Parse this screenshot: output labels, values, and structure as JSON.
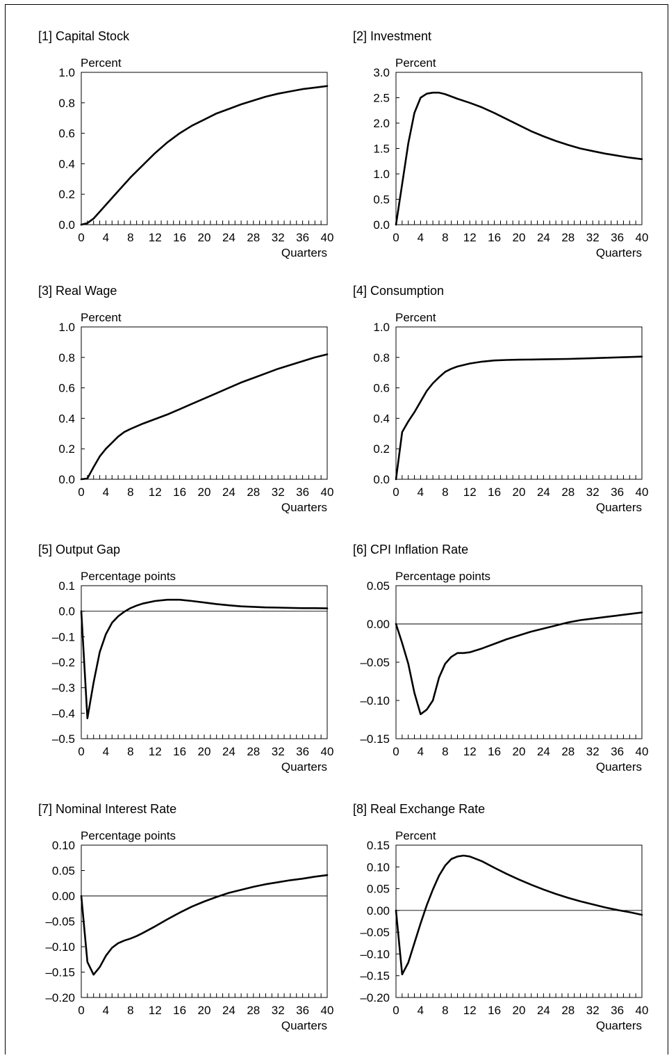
{
  "chart_data": [
    {
      "type": "line",
      "title": "[1] Capital Stock",
      "ylabel": "Percent",
      "xlabel": "Quarters",
      "xlim": [
        0,
        40
      ],
      "ylim": [
        0,
        1.0
      ],
      "xticks": [
        0,
        4,
        8,
        12,
        16,
        20,
        24,
        28,
        32,
        36,
        40
      ],
      "yticks": [
        0.0,
        0.2,
        0.4,
        0.6,
        0.8,
        1.0
      ],
      "ytick_labels": [
        "0.0",
        "0.2",
        "0.4",
        "0.6",
        "0.8",
        "1.0"
      ],
      "zero_line": false,
      "series": [
        {
          "x": [
            0,
            1,
            2,
            4,
            6,
            8,
            10,
            12,
            14,
            16,
            18,
            20,
            22,
            24,
            26,
            28,
            30,
            32,
            34,
            36,
            38,
            40
          ],
          "y": [
            0.0,
            0.01,
            0.04,
            0.13,
            0.22,
            0.31,
            0.39,
            0.47,
            0.54,
            0.6,
            0.65,
            0.69,
            0.73,
            0.76,
            0.79,
            0.815,
            0.84,
            0.86,
            0.875,
            0.89,
            0.9,
            0.91
          ]
        }
      ]
    },
    {
      "type": "line",
      "title": "[2] Investment",
      "ylabel": "Percent",
      "xlabel": "Quarters",
      "xlim": [
        0,
        40
      ],
      "ylim": [
        0,
        3.0
      ],
      "xticks": [
        0,
        4,
        8,
        12,
        16,
        20,
        24,
        28,
        32,
        36,
        40
      ],
      "yticks": [
        0.0,
        0.5,
        1.0,
        1.5,
        2.0,
        2.5,
        3.0
      ],
      "ytick_labels": [
        "0.0",
        "0.5",
        "1.0",
        "1.5",
        "2.0",
        "2.5",
        "3.0"
      ],
      "zero_line": false,
      "series": [
        {
          "x": [
            0,
            1,
            2,
            3,
            4,
            5,
            6,
            7,
            8,
            10,
            12,
            14,
            16,
            18,
            20,
            22,
            24,
            26,
            28,
            30,
            32,
            34,
            36,
            38,
            40
          ],
          "y": [
            0.0,
            0.8,
            1.6,
            2.2,
            2.5,
            2.58,
            2.6,
            2.6,
            2.57,
            2.48,
            2.4,
            2.31,
            2.2,
            2.08,
            1.96,
            1.84,
            1.74,
            1.65,
            1.57,
            1.5,
            1.45,
            1.4,
            1.36,
            1.32,
            1.29
          ]
        }
      ]
    },
    {
      "type": "line",
      "title": "[3] Real Wage",
      "ylabel": "Percent",
      "xlabel": "Quarters",
      "xlim": [
        0,
        40
      ],
      "ylim": [
        0,
        1.0
      ],
      "xticks": [
        0,
        4,
        8,
        12,
        16,
        20,
        24,
        28,
        32,
        36,
        40
      ],
      "yticks": [
        0.0,
        0.2,
        0.4,
        0.6,
        0.8,
        1.0
      ],
      "ytick_labels": [
        "0.0",
        "0.2",
        "0.4",
        "0.6",
        "0.8",
        "1.0"
      ],
      "zero_line": false,
      "series": [
        {
          "x": [
            0,
            1,
            2,
            3,
            4,
            5,
            6,
            7,
            8,
            10,
            12,
            14,
            16,
            18,
            20,
            22,
            24,
            26,
            28,
            30,
            32,
            34,
            36,
            38,
            40
          ],
          "y": [
            0.0,
            0.005,
            0.08,
            0.15,
            0.2,
            0.24,
            0.28,
            0.31,
            0.33,
            0.365,
            0.395,
            0.425,
            0.46,
            0.495,
            0.53,
            0.565,
            0.6,
            0.635,
            0.665,
            0.695,
            0.725,
            0.75,
            0.775,
            0.8,
            0.82
          ]
        }
      ]
    },
    {
      "type": "line",
      "title": "[4] Consumption",
      "ylabel": "Percent",
      "xlabel": "Quarters",
      "xlim": [
        0,
        40
      ],
      "ylim": [
        0,
        1.0
      ],
      "xticks": [
        0,
        4,
        8,
        12,
        16,
        20,
        24,
        28,
        32,
        36,
        40
      ],
      "yticks": [
        0.0,
        0.2,
        0.4,
        0.6,
        0.8,
        1.0
      ],
      "ytick_labels": [
        "0.0",
        "0.2",
        "0.4",
        "0.6",
        "0.8",
        "1.0"
      ],
      "zero_line": false,
      "series": [
        {
          "x": [
            0,
            1,
            2,
            3,
            4,
            5,
            6,
            7,
            8,
            9,
            10,
            12,
            14,
            16,
            18,
            20,
            24,
            28,
            32,
            36,
            40
          ],
          "y": [
            0.0,
            0.31,
            0.38,
            0.44,
            0.51,
            0.58,
            0.63,
            0.67,
            0.705,
            0.725,
            0.74,
            0.76,
            0.772,
            0.78,
            0.783,
            0.785,
            0.787,
            0.79,
            0.795,
            0.8,
            0.805
          ]
        }
      ]
    },
    {
      "type": "line",
      "title": "[5] Output Gap",
      "ylabel": "Percentage points",
      "xlabel": "Quarters",
      "xlim": [
        0,
        40
      ],
      "ylim": [
        -0.5,
        0.1
      ],
      "xticks": [
        0,
        4,
        8,
        12,
        16,
        20,
        24,
        28,
        32,
        36,
        40
      ],
      "yticks": [
        -0.5,
        -0.4,
        -0.3,
        -0.2,
        -0.1,
        0.0,
        0.1
      ],
      "ytick_labels": [
        "–0.5",
        "–0.4",
        "–0.3",
        "–0.2",
        "–0.1",
        "0.0",
        "0.1"
      ],
      "zero_line": true,
      "series": [
        {
          "x": [
            0,
            1,
            2,
            3,
            4,
            5,
            6,
            7,
            8,
            9,
            10,
            12,
            14,
            16,
            18,
            20,
            22,
            24,
            26,
            28,
            30,
            32,
            34,
            36,
            38,
            40
          ],
          "y": [
            0.0,
            -0.42,
            -0.28,
            -0.16,
            -0.09,
            -0.045,
            -0.02,
            -0.002,
            0.012,
            0.022,
            0.03,
            0.04,
            0.045,
            0.045,
            0.04,
            0.034,
            0.028,
            0.023,
            0.019,
            0.017,
            0.015,
            0.014,
            0.013,
            0.012,
            0.012,
            0.011
          ]
        }
      ]
    },
    {
      "type": "line",
      "title": "[6] CPI Inflation Rate",
      "ylabel": "Percentage points",
      "xlabel": "Quarters",
      "xlim": [
        0,
        40
      ],
      "ylim": [
        -0.15,
        0.05
      ],
      "xticks": [
        0,
        4,
        8,
        12,
        16,
        20,
        24,
        28,
        32,
        36,
        40
      ],
      "yticks": [
        -0.15,
        -0.1,
        -0.05,
        0.0,
        0.05
      ],
      "ytick_labels": [
        "–0.15",
        "–0.10",
        "–0.05",
        "0.00",
        "0.05"
      ],
      "zero_line": true,
      "series": [
        {
          "x": [
            0,
            1,
            2,
            3,
            4,
            5,
            6,
            7,
            8,
            9,
            10,
            11,
            12,
            14,
            16,
            18,
            20,
            22,
            24,
            26,
            28,
            30,
            32,
            34,
            36,
            38,
            40
          ],
          "y": [
            0.0,
            -0.025,
            -0.052,
            -0.09,
            -0.118,
            -0.112,
            -0.1,
            -0.07,
            -0.052,
            -0.043,
            -0.038,
            -0.038,
            -0.037,
            -0.032,
            -0.026,
            -0.02,
            -0.015,
            -0.01,
            -0.006,
            -0.002,
            0.002,
            0.005,
            0.007,
            0.009,
            0.011,
            0.013,
            0.015
          ]
        }
      ]
    },
    {
      "type": "line",
      "title": "[7] Nominal Interest Rate",
      "ylabel": "Percentage points",
      "xlabel": "Quarters",
      "xlim": [
        0,
        40
      ],
      "ylim": [
        -0.2,
        0.1
      ],
      "xticks": [
        0,
        4,
        8,
        12,
        16,
        20,
        24,
        28,
        32,
        36,
        40
      ],
      "yticks": [
        -0.2,
        -0.15,
        -0.1,
        -0.05,
        0.0,
        0.05,
        0.1
      ],
      "ytick_labels": [
        "–0.20",
        "–0.15",
        "–0.10",
        "–0.05",
        "0.00",
        "0.05",
        "0.10"
      ],
      "zero_line": true,
      "series": [
        {
          "x": [
            0,
            1,
            2,
            3,
            4,
            5,
            6,
            7,
            8,
            9,
            10,
            12,
            14,
            16,
            18,
            20,
            22,
            24,
            26,
            28,
            30,
            32,
            34,
            36,
            38,
            40
          ],
          "y": [
            0.0,
            -0.13,
            -0.155,
            -0.14,
            -0.118,
            -0.102,
            -0.093,
            -0.088,
            -0.084,
            -0.079,
            -0.073,
            -0.06,
            -0.046,
            -0.033,
            -0.021,
            -0.011,
            -0.002,
            0.006,
            0.012,
            0.018,
            0.023,
            0.027,
            0.031,
            0.034,
            0.038,
            0.041
          ]
        }
      ]
    },
    {
      "type": "line",
      "title": "[8] Real Exchange Rate",
      "ylabel": "Percent",
      "xlabel": "Quarters",
      "xlim": [
        0,
        40
      ],
      "ylim": [
        -0.2,
        0.15
      ],
      "xticks": [
        0,
        4,
        8,
        12,
        16,
        20,
        24,
        28,
        32,
        36,
        40
      ],
      "yticks": [
        -0.2,
        -0.15,
        -0.1,
        -0.05,
        0.0,
        0.05,
        0.1,
        0.15
      ],
      "ytick_labels": [
        "–0.20",
        "–0.15",
        "–0.10",
        "–0.05",
        "0.00",
        "0.05",
        "0.10",
        "0.15"
      ],
      "zero_line": true,
      "series": [
        {
          "x": [
            0,
            1,
            2,
            3,
            4,
            5,
            6,
            7,
            8,
            9,
            10,
            11,
            12,
            14,
            16,
            18,
            20,
            22,
            24,
            26,
            28,
            30,
            32,
            34,
            36,
            38,
            40
          ],
          "y": [
            0.0,
            -0.147,
            -0.12,
            -0.075,
            -0.03,
            0.012,
            0.048,
            0.08,
            0.103,
            0.118,
            0.124,
            0.126,
            0.124,
            0.113,
            0.098,
            0.084,
            0.071,
            0.059,
            0.048,
            0.038,
            0.029,
            0.021,
            0.014,
            0.007,
            0.001,
            -0.004,
            -0.01
          ]
        }
      ]
    }
  ]
}
